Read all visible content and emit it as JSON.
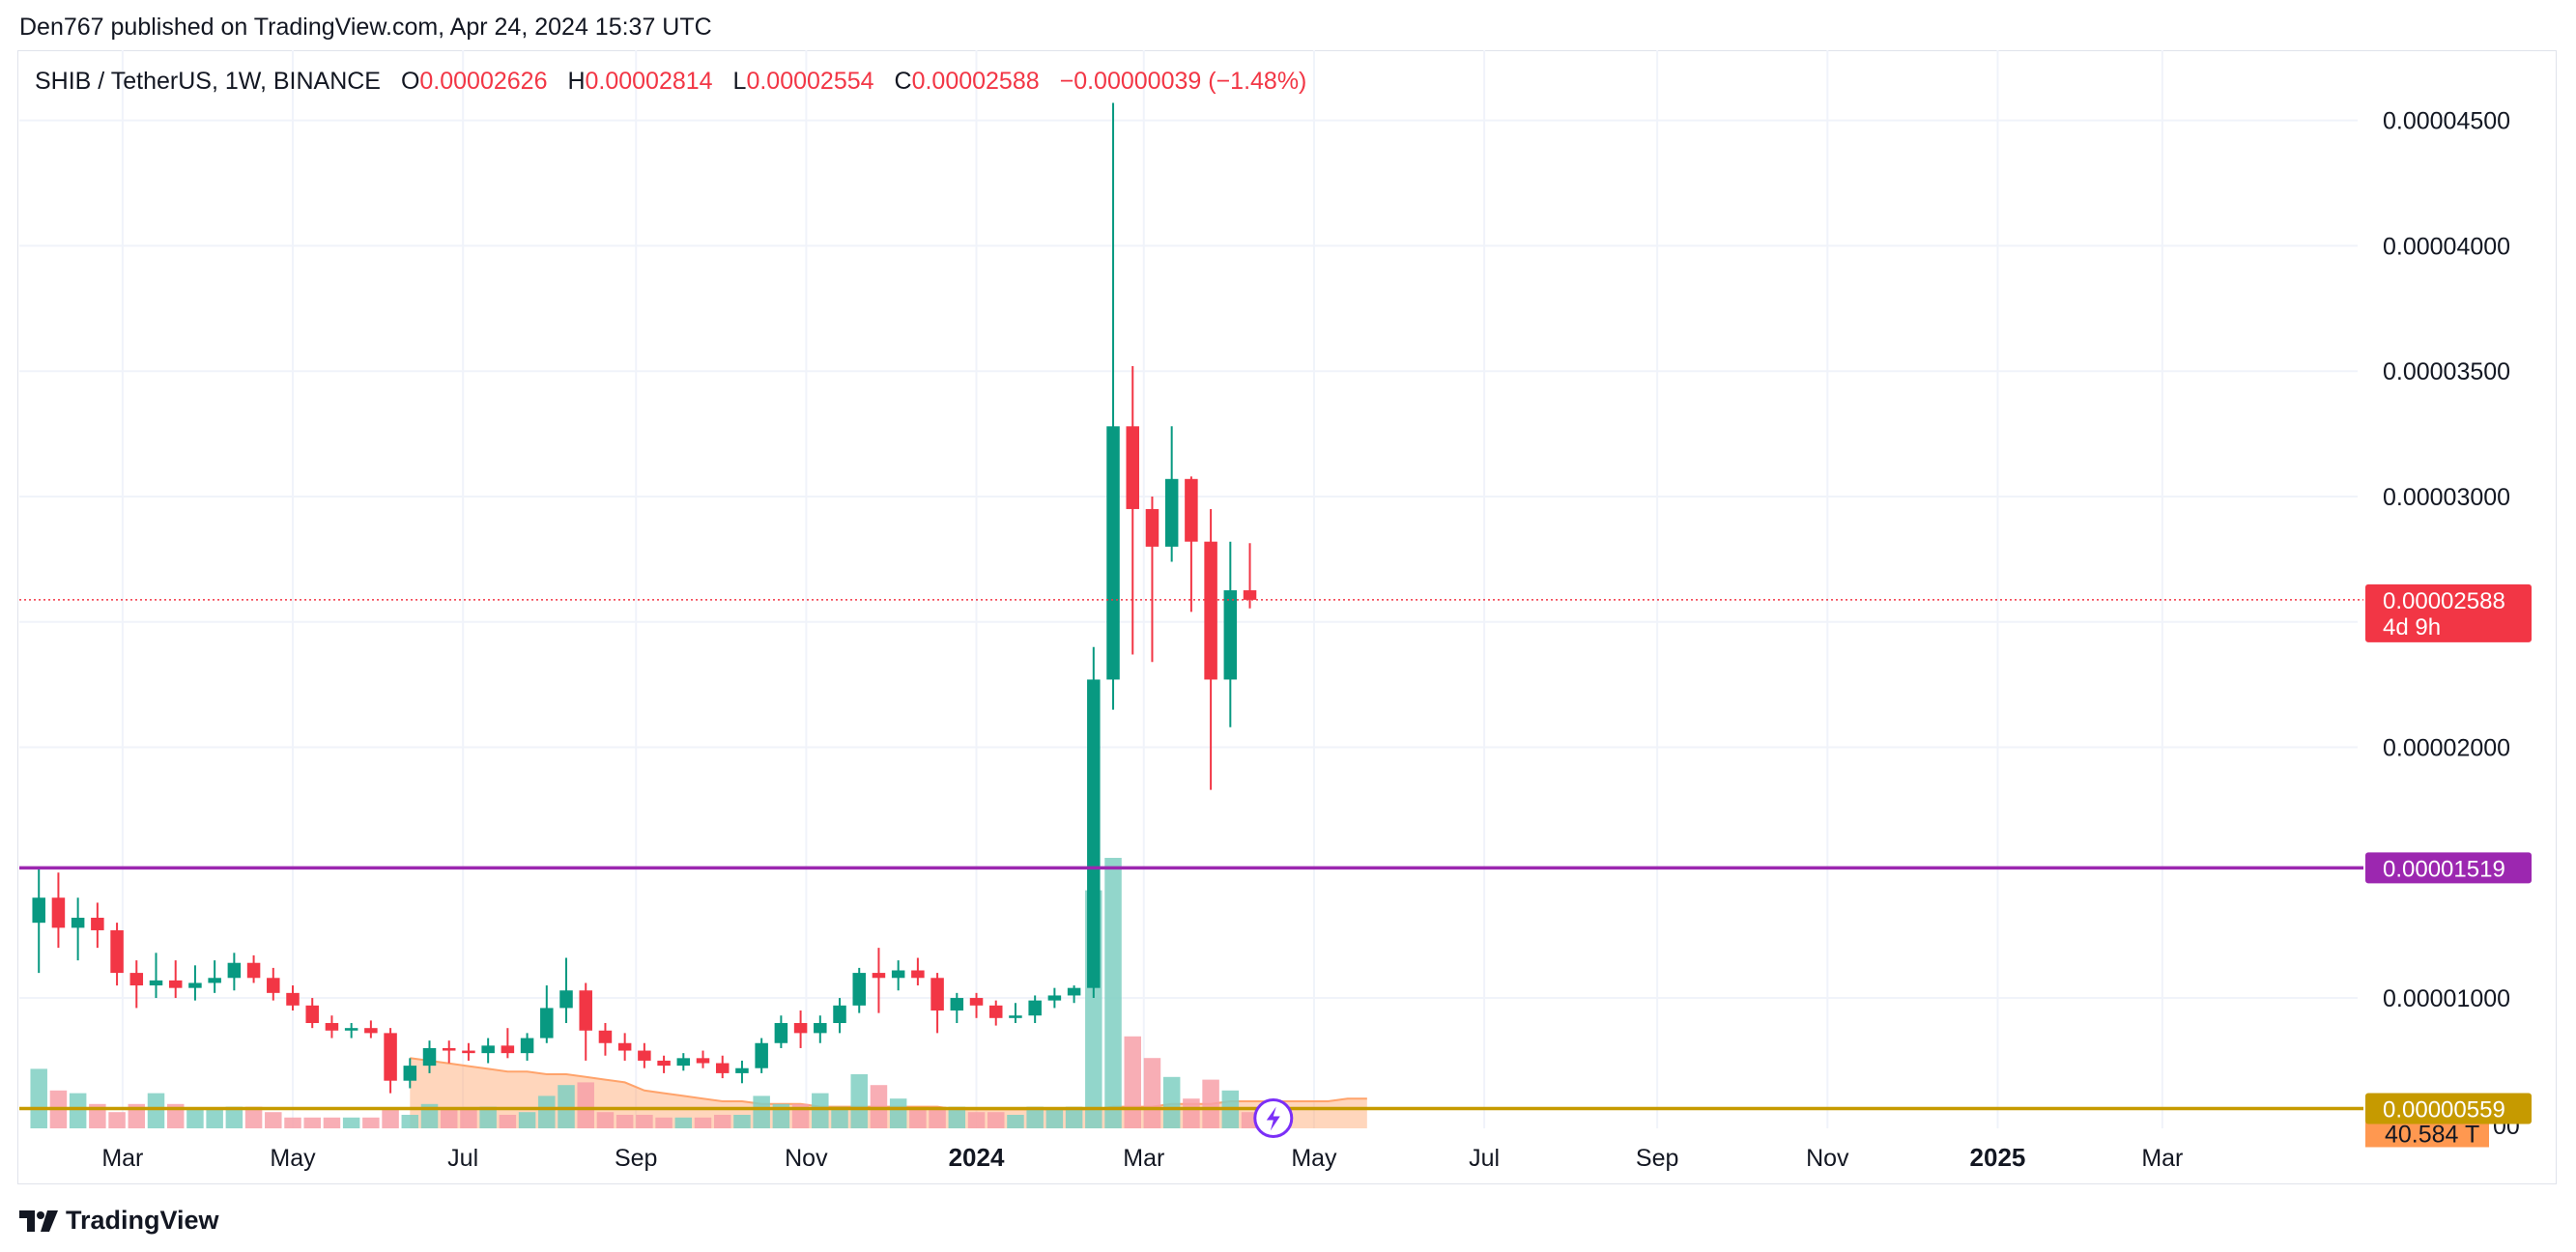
{
  "header": {
    "published": "Den767 published on TradingView.com, Apr 24, 2024 15:37 UTC"
  },
  "legend": {
    "symbol": "SHIB / TetherUS, 1W, BINANCE",
    "open_label": "O",
    "open": "0.00002626",
    "high_label": "H",
    "high": "0.00002814",
    "low_label": "L",
    "low": "0.00002554",
    "close_label": "C",
    "close": "0.00002588",
    "change": "−0.00000039 (−1.48%)"
  },
  "footer": {
    "brand": "TradingView"
  },
  "colors": {
    "up": "#089981",
    "down": "#f23645",
    "support": "#9c27b0",
    "lower_line": "#c69a00",
    "volume_ma": "#ffa36b"
  },
  "icons": {
    "flash": "flash-icon",
    "logo": "tradingview-logo-icon"
  },
  "chart_data": {
    "type": "candlestick",
    "timeframe": "1W",
    "y_ticks": [
      "0.00004500",
      "0.00004000",
      "0.00003500",
      "0.00003000",
      "0.00002000",
      "0.00001000"
    ],
    "y_tick_values": [
      4.5e-05,
      4e-05,
      3.5e-05,
      3e-05,
      2e-05,
      1e-05
    ],
    "ylim": [
      4.8e-06,
      4.78e-05
    ],
    "x_labels": [
      "Mar",
      "May",
      "Jul",
      "Sep",
      "Nov",
      "2024",
      "Mar",
      "May",
      "Jul",
      "Sep",
      "Nov",
      "2025",
      "Mar"
    ],
    "x_label_dates": [
      "2023-03-01",
      "2023-05-01",
      "2023-07-01",
      "2023-09-01",
      "2023-11-01",
      "2024-01-01",
      "2024-03-01",
      "2024-05-01",
      "2024-07-01",
      "2024-09-01",
      "2024-11-01",
      "2025-01-01",
      "2025-03-01"
    ],
    "year_labels": [
      "2024",
      "2025"
    ],
    "x_range": [
      "2023-01-23",
      "2025-05-10"
    ],
    "first_candle_date": "2023-01-30",
    "price_badge": {
      "value": "0.00002588",
      "countdown": "4d 9h",
      "y": 2.588e-05
    },
    "horizontal_lines": [
      {
        "value": "0.00001519",
        "y": 1.519e-05,
        "color": "#9c27b0"
      },
      {
        "value": "0.00000559",
        "y": 5.59e-06,
        "color": "#c69a00"
      }
    ],
    "volume_label": "40.584 T",
    "ohlc": [
      [
        1.3e-05,
        1.52e-05,
        1.1e-05,
        1.4e-05
      ],
      [
        1.4e-05,
        1.5e-05,
        1.2e-05,
        1.28e-05
      ],
      [
        1.28e-05,
        1.4e-05,
        1.15e-05,
        1.32e-05
      ],
      [
        1.32e-05,
        1.38e-05,
        1.2e-05,
        1.27e-05
      ],
      [
        1.27e-05,
        1.3e-05,
        1.05e-05,
        1.1e-05
      ],
      [
        1.1e-05,
        1.15e-05,
        9.6e-06,
        1.05e-05
      ],
      [
        1.05e-05,
        1.18e-05,
        1e-05,
        1.07e-05
      ],
      [
        1.07e-05,
        1.15e-05,
        1e-05,
        1.04e-05
      ],
      [
        1.04e-05,
        1.13e-05,
        9.9e-06,
        1.06e-05
      ],
      [
        1.06e-05,
        1.15e-05,
        1.02e-05,
        1.08e-05
      ],
      [
        1.08e-05,
        1.18e-05,
        1.03e-05,
        1.14e-05
      ],
      [
        1.14e-05,
        1.17e-05,
        1.06e-05,
        1.08e-05
      ],
      [
        1.08e-05,
        1.12e-05,
        9.9e-06,
        1.02e-05
      ],
      [
        1.02e-05,
        1.05e-05,
        9.5e-06,
        9.7e-06
      ],
      [
        9.7e-06,
        1e-05,
        8.8e-06,
        9e-06
      ],
      [
        9e-06,
        9.3e-06,
        8.4e-06,
        8.7e-06
      ],
      [
        8.7e-06,
        9e-06,
        8.4e-06,
        8.8e-06
      ],
      [
        8.8e-06,
        9.1e-06,
        8.4e-06,
        8.6e-06
      ],
      [
        8.6e-06,
        8.8e-06,
        6.2e-06,
        6.7e-06
      ],
      [
        6.7e-06,
        7.6e-06,
        6.4e-06,
        7.3e-06
      ],
      [
        7.3e-06,
        8.3e-06,
        7e-06,
        8e-06
      ],
      [
        8e-06,
        8.3e-06,
        7.4e-06,
        7.9e-06
      ],
      [
        7.9e-06,
        8.2e-06,
        7.5e-06,
        7.8e-06
      ],
      [
        7.8e-06,
        8.4e-06,
        7.4e-06,
        8.1e-06
      ],
      [
        8.1e-06,
        8.8e-06,
        7.6e-06,
        7.8e-06
      ],
      [
        7.8e-06,
        8.6e-06,
        7.5e-06,
        8.4e-06
      ],
      [
        8.4e-06,
        1.05e-05,
        8.2e-06,
        9.6e-06
      ],
      [
        9.6e-06,
        1.16e-05,
        9e-06,
        1.03e-05
      ],
      [
        1.03e-05,
        1.06e-05,
        7.5e-06,
        8.7e-06
      ],
      [
        8.7e-06,
        9e-06,
        7.7e-06,
        8.2e-06
      ],
      [
        8.2e-06,
        8.6e-06,
        7.5e-06,
        7.9e-06
      ],
      [
        7.9e-06,
        8.2e-06,
        7.2e-06,
        7.5e-06
      ],
      [
        7.5e-06,
        7.7e-06,
        7e-06,
        7.3e-06
      ],
      [
        7.3e-06,
        7.8e-06,
        7.1e-06,
        7.6e-06
      ],
      [
        7.6e-06,
        7.9e-06,
        7.2e-06,
        7.4e-06
      ],
      [
        7.4e-06,
        7.7e-06,
        6.8e-06,
        7e-06
      ],
      [
        7e-06,
        7.5e-06,
        6.6e-06,
        7.2e-06
      ],
      [
        7.2e-06,
        8.4e-06,
        7e-06,
        8.2e-06
      ],
      [
        8.2e-06,
        9.3e-06,
        8e-06,
        9e-06
      ],
      [
        9e-06,
        9.5e-06,
        8e-06,
        8.6e-06
      ],
      [
        8.6e-06,
        9.3e-06,
        8.2e-06,
        9e-06
      ],
      [
        9e-06,
        1e-05,
        8.6e-06,
        9.7e-06
      ],
      [
        9.7e-06,
        1.12e-05,
        9.4e-06,
        1.1e-05
      ],
      [
        1.1e-05,
        1.2e-05,
        9.4e-06,
        1.08e-05
      ],
      [
        1.08e-05,
        1.15e-05,
        1.03e-05,
        1.11e-05
      ],
      [
        1.11e-05,
        1.16e-05,
        1.05e-05,
        1.08e-05
      ],
      [
        1.08e-05,
        1.1e-05,
        8.6e-06,
        9.5e-06
      ],
      [
        9.5e-06,
        1.02e-05,
        9e-06,
        1e-05
      ],
      [
        1e-05,
        1.02e-05,
        9.2e-06,
        9.7e-06
      ],
      [
        9.7e-06,
        9.9e-06,
        8.9e-06,
        9.2e-06
      ],
      [
        9.2e-06,
        9.8e-06,
        9e-06,
        9.3e-06
      ],
      [
        9.3e-06,
        1.01e-05,
        9e-06,
        9.9e-06
      ],
      [
        9.9e-06,
        1.04e-05,
        9.6e-06,
        1.01e-05
      ],
      [
        1.01e-05,
        1.05e-05,
        9.8e-06,
        1.04e-05
      ],
      [
        1.04e-05,
        2.4e-05,
        1e-05,
        2.27e-05
      ],
      [
        2.27e-05,
        4.57e-05,
        2.15e-05,
        3.28e-05
      ],
      [
        3.28e-05,
        3.52e-05,
        2.37e-05,
        2.95e-05
      ],
      [
        2.95e-05,
        3e-05,
        2.34e-05,
        2.8e-05
      ],
      [
        2.8e-05,
        3.28e-05,
        2.74e-05,
        3.07e-05
      ],
      [
        3.07e-05,
        3.08e-05,
        2.54e-05,
        2.82e-05
      ],
      [
        2.82e-05,
        2.95e-05,
        1.83e-05,
        2.27e-05
      ],
      [
        2.27e-05,
        2.82e-05,
        2.08e-05,
        2.626e-05
      ],
      [
        2.626e-05,
        2.814e-05,
        2.554e-05,
        2.588e-05
      ]
    ],
    "volume_scale": "relative",
    "volumes": [
      0.22,
      0.14,
      0.13,
      0.09,
      0.06,
      0.09,
      0.13,
      0.09,
      0.07,
      0.07,
      0.08,
      0.08,
      0.06,
      0.04,
      0.04,
      0.04,
      0.04,
      0.04,
      0.07,
      0.05,
      0.09,
      0.07,
      0.07,
      0.08,
      0.05,
      0.06,
      0.12,
      0.16,
      0.17,
      0.06,
      0.05,
      0.05,
      0.04,
      0.04,
      0.04,
      0.05,
      0.05,
      0.12,
      0.09,
      0.09,
      0.13,
      0.08,
      0.2,
      0.16,
      0.11,
      0.07,
      0.08,
      0.08,
      0.06,
      0.06,
      0.05,
      0.08,
      0.07,
      0.08,
      0.88,
      1.0,
      0.34,
      0.26,
      0.19,
      0.11,
      0.18,
      0.14,
      0.06
    ],
    "volume_ma": [
      0.26,
      0.25,
      0.24,
      0.23,
      0.22,
      0.21,
      0.21,
      0.2,
      0.2,
      0.19,
      0.18,
      0.17,
      0.14,
      0.13,
      0.12,
      0.11,
      0.1,
      0.1,
      0.09,
      0.09,
      0.09,
      0.08,
      0.08,
      0.08,
      0.08,
      0.08,
      0.08,
      0.08,
      0.07,
      0.07,
      0.07,
      0.07,
      0.07,
      0.07,
      0.07,
      0.07,
      0.08,
      0.08,
      0.08,
      0.09,
      0.09,
      0.09,
      0.1,
      0.1,
      0.1,
      0.1,
      0.1,
      0.1,
      0.11,
      0.11
    ]
  }
}
